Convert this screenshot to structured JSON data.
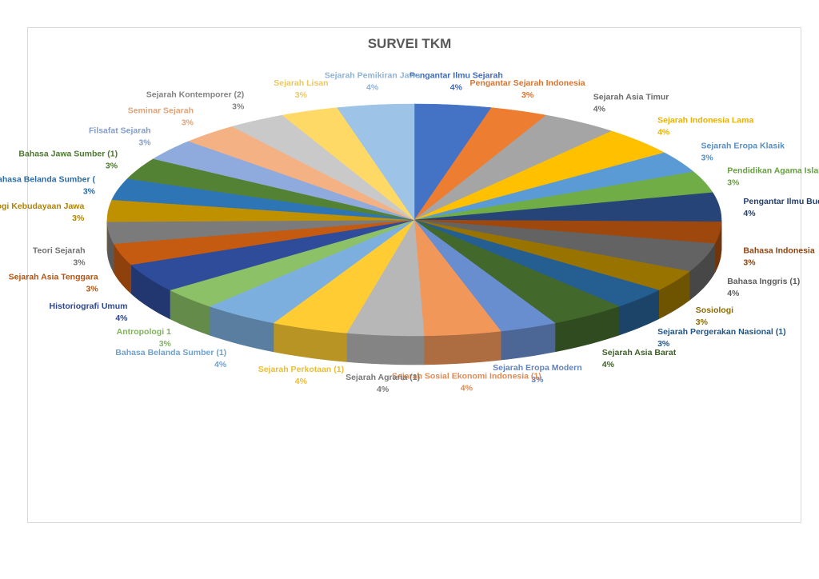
{
  "chart_data": {
    "type": "pie",
    "title": "SURVEI TKM",
    "style": "3d-pie",
    "legend": "none",
    "slices": [
      {
        "label": "Pengantar Ilmu Sejarah",
        "value": 4,
        "pct": "4%",
        "color": "#4472C4"
      },
      {
        "label": "Pengantar Sejarah Indonesia",
        "value": 3,
        "pct": "3%",
        "color": "#ED7D31"
      },
      {
        "label": "Sejarah Asia Timur",
        "value": 4,
        "pct": "4%",
        "color": "#A5A5A5"
      },
      {
        "label": "Sejarah Indonesia Lama",
        "value": 4,
        "pct": "4%",
        "color": "#FFC000"
      },
      {
        "label": "Sejarah Eropa Klasik",
        "value": 3,
        "pct": "3%",
        "color": "#5B9BD5"
      },
      {
        "label": "Pendidikan Agama Islam",
        "value": 3,
        "pct": "3%",
        "color": "#70AD47"
      },
      {
        "label": "Pengantar Ilmu Budaya",
        "value": 4,
        "pct": "4%",
        "color": "#264478"
      },
      {
        "label": "Bahasa Indonesia",
        "value": 3,
        "pct": "3%",
        "color": "#9E480E"
      },
      {
        "label": "Bahasa Inggris (1)",
        "value": 4,
        "pct": "4%",
        "color": "#636363"
      },
      {
        "label": "Sosiologi",
        "value": 3,
        "pct": "3%",
        "color": "#997300"
      },
      {
        "label": "Sejarah Pergerakan Nasional (1)",
        "value": 3,
        "pct": "3%",
        "color": "#255E91"
      },
      {
        "label": "Sejarah Asia Barat",
        "value": 4,
        "pct": "4%",
        "color": "#43682B"
      },
      {
        "label": "Sejarah Eropa Modern",
        "value": 3,
        "pct": "3%",
        "color": "#698ED0"
      },
      {
        "label": "Sejarah Sosial Ekonomi Indonesia (1)",
        "value": 4,
        "pct": "4%",
        "color": "#F1975A"
      },
      {
        "label": "Sejarah Agraria (1)",
        "value": 4,
        "pct": "4%",
        "color": "#B7B7B7"
      },
      {
        "label": "Sejarah Perkotaan (1)",
        "value": 4,
        "pct": "4%",
        "color": "#FFCD33"
      },
      {
        "label": "Bahasa Belanda Sumber (1)",
        "value": 4,
        "pct": "4%",
        "color": "#7CAFDD"
      },
      {
        "label": "Antropologi 1",
        "value": 3,
        "pct": "3%",
        "color": "#8CC168"
      },
      {
        "label": "Historiografi Umum",
        "value": 4,
        "pct": "4%",
        "color": "#2F4C9A"
      },
      {
        "label": "Sejarah Asia Tenggara",
        "value": 3,
        "pct": "3%",
        "color": "#C55A11"
      },
      {
        "label": "Teori Sejarah",
        "value": 3,
        "pct": "3%",
        "color": "#7B7B7B"
      },
      {
        "label": "Ekologi Kebudayaan Jawa",
        "value": 3,
        "pct": "3%",
        "color": "#BF9000"
      },
      {
        "label": "Bahasa Belanda Sumber (",
        "value": 3,
        "pct": "3%",
        "color": "#2E75B6"
      },
      {
        "label": "Bahasa Jawa Sumber (1)",
        "value": 3,
        "pct": "3%",
        "color": "#548235"
      },
      {
        "label": "Filsafat Sejarah",
        "value": 3,
        "pct": "3%",
        "color": "#8FAADC"
      },
      {
        "label": "Seminar Sejarah",
        "value": 3,
        "pct": "3%",
        "color": "#F4B183"
      },
      {
        "label": "Sejarah Kontemporer (2)",
        "value": 3,
        "pct": "3%",
        "color": "#C9C9C9"
      },
      {
        "label": "Sejarah Lisan",
        "value": 3,
        "pct": "3%",
        "color": "#FFD966"
      },
      {
        "label": "Sejarah Pemikiran Jawa",
        "value": 4,
        "pct": "4%",
        "color": "#9DC3E6"
      }
    ]
  }
}
